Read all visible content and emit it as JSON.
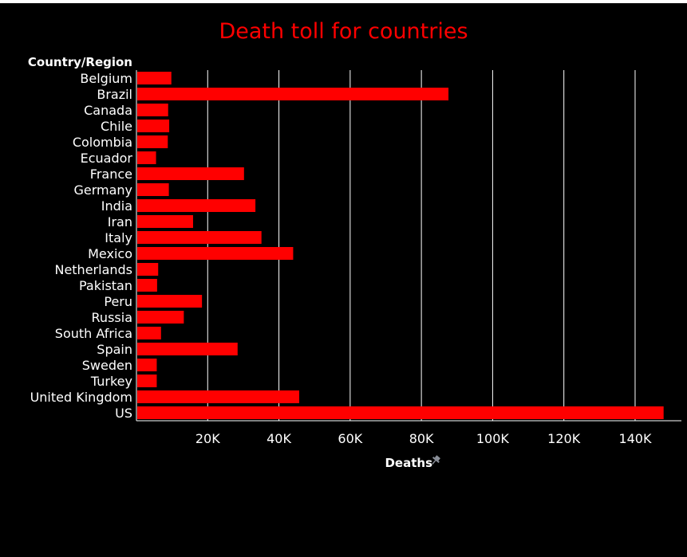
{
  "chart_data": {
    "type": "bar",
    "orientation": "horizontal",
    "title": "Death toll for countries",
    "ylabel": "Country/Region",
    "xlabel": "Deaths",
    "xlabel_icon": "pin-icon",
    "categories": [
      "Belgium",
      "Brazil",
      "Canada",
      "Chile",
      "Colombia",
      "Ecuador",
      "France",
      "Germany",
      "India",
      "Iran",
      "Italy",
      "Mexico",
      "Netherlands",
      "Pakistan",
      "Peru",
      "Russia",
      "South Africa",
      "Spain",
      "Sweden",
      "Turkey",
      "United Kingdom",
      "US"
    ],
    "values": [
      9800,
      87600,
      8900,
      9200,
      8800,
      5500,
      30200,
      9100,
      33400,
      15900,
      35100,
      44000,
      6100,
      5800,
      18400,
      13300,
      6900,
      28400,
      5700,
      5700,
      45700,
      148000
    ],
    "xlim": [
      0,
      153000
    ],
    "xticks": [
      20000,
      40000,
      60000,
      80000,
      100000,
      120000,
      140000
    ],
    "xtick_labels": [
      "20K",
      "40K",
      "60K",
      "80K",
      "100K",
      "120K",
      "140K"
    ],
    "grid": true,
    "colors": {
      "background": "#000000",
      "bar": "#ff0000",
      "title": "#ff0000",
      "text": "#ffffff",
      "grid": "#ffffff",
      "pin": "#8a8f99"
    }
  }
}
